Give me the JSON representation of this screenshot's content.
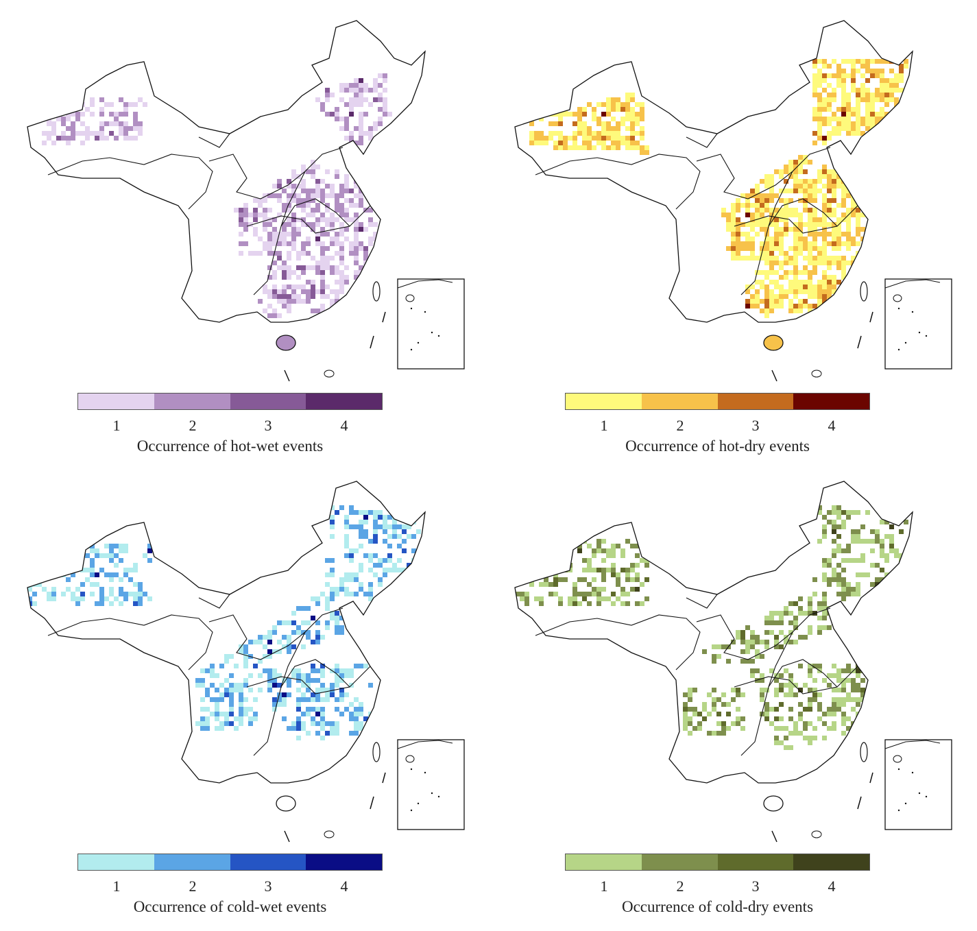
{
  "panels": [
    {
      "caption": "Occurrence of hot-wet events",
      "ticks": [
        "1",
        "2",
        "3",
        "4"
      ],
      "colors": [
        "#e4d3ef",
        "#b18fc2",
        "#865a97",
        "#5b2a6a"
      ]
    },
    {
      "caption": "Occurrence of hot-dry events",
      "ticks": [
        "1",
        "2",
        "3",
        "4"
      ],
      "colors": [
        "#fefa7c",
        "#f7c24a",
        "#c46b1e",
        "#6b0500"
      ]
    },
    {
      "caption": "Occurrence of cold-wet events",
      "ticks": [
        "1",
        "2",
        "3",
        "4"
      ],
      "colors": [
        "#b2ecee",
        "#5ba5e5",
        "#2555c4",
        "#0a0d85"
      ]
    },
    {
      "caption": "Occurrence of cold-dry events",
      "ticks": [
        "1",
        "2",
        "3",
        "4"
      ],
      "colors": [
        "#b6d587",
        "#7e8f4d",
        "#5f6b2c",
        "#3f421c"
      ]
    }
  ]
}
